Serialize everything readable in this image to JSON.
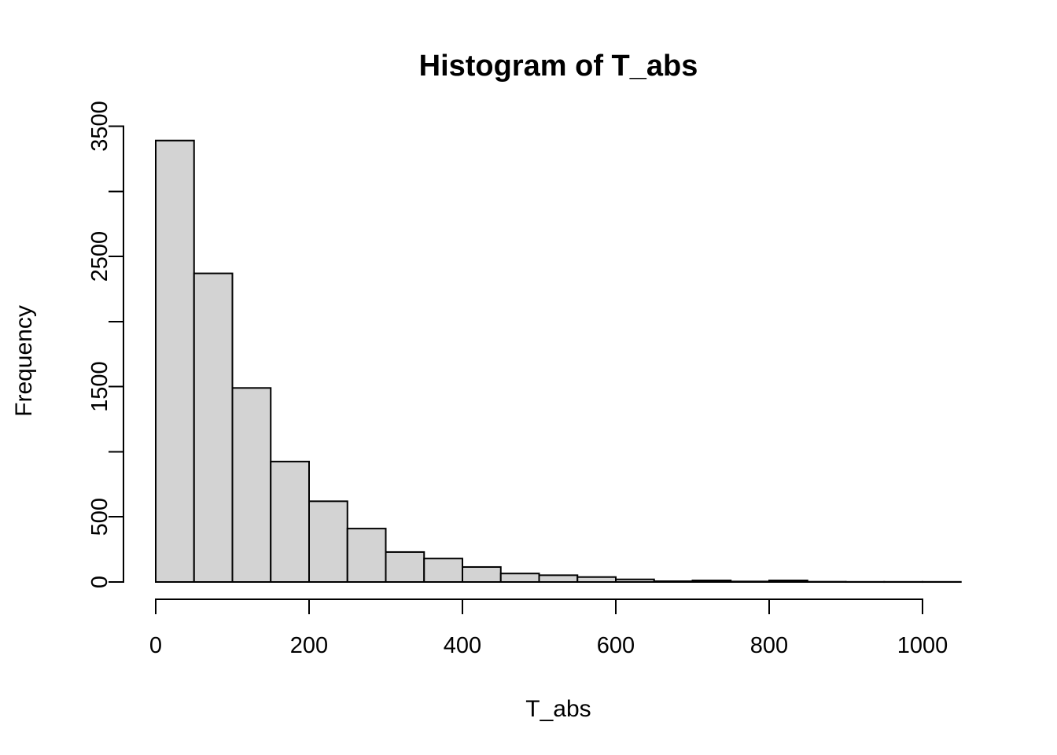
{
  "figure": {
    "background_color": "#ffffff",
    "text_color": "#000000"
  },
  "chart_data": {
    "type": "bar",
    "subtype": "histogram",
    "title": "Histogram of T_abs",
    "xlabel": "T_abs",
    "ylabel": "Frequency",
    "bin_edges": [
      0,
      50,
      100,
      150,
      200,
      250,
      300,
      350,
      400,
      450,
      500,
      550,
      600,
      650,
      700,
      750,
      800,
      850,
      900,
      950,
      1000,
      1050
    ],
    "counts": [
      3390,
      2370,
      1490,
      925,
      620,
      410,
      230,
      180,
      115,
      65,
      52,
      38,
      20,
      6,
      12,
      4,
      12,
      2,
      1,
      1,
      1
    ],
    "x_ticks": [
      0,
      200,
      400,
      600,
      800,
      1000
    ],
    "x_tick_labels": [
      "0",
      "200",
      "400",
      "600",
      "800",
      "1000"
    ],
    "y_ticks": [
      0,
      500,
      1000,
      1500,
      2000,
      2500,
      3000,
      3500
    ],
    "y_tick_labels_shown": [
      0,
      500,
      1500,
      2500,
      3500
    ],
    "xlim": [
      0,
      1050
    ],
    "ylim": [
      0,
      3500
    ],
    "grid": false,
    "legend": null,
    "bar_fill_color": "#D3D3D3",
    "bar_stroke_color": "#000000",
    "axis_color": "#000000"
  }
}
